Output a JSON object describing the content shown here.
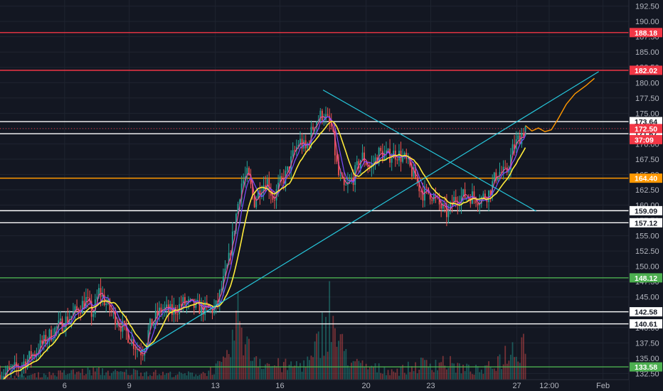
{
  "chart_data": {
    "type": "candlestick",
    "title": "",
    "xlabel": "",
    "ylabel": "",
    "ylim": [
      131.5,
      193.5
    ],
    "y_ticks": [
      132.5,
      135.0,
      137.5,
      140.0,
      142.5,
      145.0,
      147.5,
      150.0,
      152.5,
      155.0,
      157.5,
      160.0,
      162.5,
      165.0,
      167.5,
      170.0,
      172.5,
      175.0,
      177.5,
      180.0,
      182.5,
      185.0,
      187.5,
      190.0,
      192.5
    ],
    "y_tick_labels": [
      "132.50",
      "135.00",
      "137.50",
      "140.00",
      "142.50",
      "145.00",
      "147.50",
      "150.00",
      "152.50",
      "155.00",
      "157.50",
      "160.00",
      "162.50",
      "165.00",
      "167.50",
      "170.00",
      "172.50",
      "175.00",
      "177.50",
      "180.00",
      "182.50",
      "185.00",
      "187.50",
      "190.00",
      "192.50"
    ],
    "x_ticks": [
      {
        "label": "6",
        "t": 3
      },
      {
        "label": "9",
        "t": 6
      },
      {
        "label": "13",
        "t": 10
      },
      {
        "label": "16",
        "t": 13
      },
      {
        "label": "20",
        "t": 17
      },
      {
        "label": "23",
        "t": 20
      },
      {
        "label": "27",
        "t": 24
      },
      {
        "label": "12:00",
        "t": 25.5
      },
      {
        "label": "Feb",
        "t": 28
      }
    ],
    "x_range": [
      0,
      29.2
    ],
    "grid": true,
    "price_path": [
      [
        0.0,
        132.3
      ],
      [
        0.5,
        132.8
      ],
      [
        1.0,
        134.0
      ],
      [
        1.5,
        135.5
      ],
      [
        2.0,
        137.5
      ],
      [
        2.5,
        139.5
      ],
      [
        3.0,
        141.0
      ],
      [
        3.5,
        142.5
      ],
      [
        4.0,
        144.5
      ],
      [
        4.3,
        142.0
      ],
      [
        4.6,
        146.0
      ],
      [
        5.0,
        143.5
      ],
      [
        5.5,
        141.0
      ],
      [
        6.0,
        138.5
      ],
      [
        6.3,
        137.0
      ],
      [
        6.6,
        136.0
      ],
      [
        7.0,
        140.5
      ],
      [
        7.5,
        143.0
      ],
      [
        8.0,
        142.5
      ],
      [
        8.5,
        144.0
      ],
      [
        9.0,
        143.5
      ],
      [
        9.5,
        143.0
      ],
      [
        10.0,
        143.0
      ],
      [
        10.3,
        146.5
      ],
      [
        10.6,
        150.5
      ],
      [
        10.9,
        157.0
      ],
      [
        11.2,
        163.5
      ],
      [
        11.5,
        165.0
      ],
      [
        11.8,
        160.5
      ],
      [
        12.1,
        163.0
      ],
      [
        12.4,
        164.0
      ],
      [
        12.7,
        161.0
      ],
      [
        13.0,
        163.5
      ],
      [
        13.3,
        165.0
      ],
      [
        13.6,
        168.0
      ],
      [
        13.9,
        170.5
      ],
      [
        14.2,
        169.0
      ],
      [
        14.6,
        173.5
      ],
      [
        15.0,
        175.0
      ],
      [
        15.4,
        172.5
      ],
      [
        15.7,
        165.0
      ],
      [
        16.0,
        162.5
      ],
      [
        16.4,
        164.5
      ],
      [
        16.8,
        168.0
      ],
      [
        17.2,
        166.0
      ],
      [
        17.6,
        168.5
      ],
      [
        18.0,
        168.0
      ],
      [
        18.4,
        168.5
      ],
      [
        18.8,
        167.5
      ],
      [
        19.2,
        165.0
      ],
      [
        19.6,
        162.0
      ],
      [
        20.0,
        162.0
      ],
      [
        20.4,
        160.0
      ],
      [
        20.8,
        158.5
      ],
      [
        21.1,
        161.0
      ],
      [
        21.5,
        161.5
      ],
      [
        21.9,
        161.5
      ],
      [
        22.3,
        161.0
      ],
      [
        22.7,
        162.0
      ],
      [
        23.1,
        165.5
      ],
      [
        23.5,
        165.0
      ],
      [
        23.8,
        169.0
      ],
      [
        24.1,
        171.0
      ],
      [
        24.4,
        172.8
      ]
    ],
    "moving_averages": [
      {
        "color": "#e84f9c",
        "period": 3
      },
      {
        "color": "#7c4dff",
        "period": 6
      },
      {
        "color": "#ffeb3b",
        "period": 12
      }
    ],
    "volume_path": [
      [
        0.5,
        0.4
      ],
      [
        1.5,
        0.6
      ],
      [
        2.5,
        0.8
      ],
      [
        3.5,
        1.0
      ],
      [
        4.5,
        1.2
      ],
      [
        5.5,
        0.9
      ],
      [
        6.5,
        1.1
      ],
      [
        7.5,
        0.8
      ],
      [
        8.5,
        0.7
      ],
      [
        9.5,
        0.9
      ],
      [
        10.5,
        2.2
      ],
      [
        10.9,
        6.5
      ],
      [
        11.2,
        9.0
      ],
      [
        11.5,
        4.0
      ],
      [
        12.5,
        2.0
      ],
      [
        13.5,
        1.8
      ],
      [
        14.5,
        2.5
      ],
      [
        15.0,
        7.0
      ],
      [
        15.3,
        9.5
      ],
      [
        15.7,
        5.0
      ],
      [
        16.5,
        2.0
      ],
      [
        17.5,
        1.5
      ],
      [
        18.5,
        1.2
      ],
      [
        19.5,
        2.0
      ],
      [
        20.5,
        2.5
      ],
      [
        21.5,
        1.5
      ],
      [
        22.5,
        1.2
      ],
      [
        23.5,
        3.5
      ],
      [
        24.0,
        4.5
      ],
      [
        24.3,
        5.5
      ]
    ],
    "horizontal_levels": [
      {
        "price": 188.18,
        "color": "#f23645",
        "label": "188.18"
      },
      {
        "price": 182.02,
        "color": "#f23645",
        "label": "182.02"
      },
      {
        "price": 173.64,
        "color": "#ffffff",
        "label": "173.64"
      },
      {
        "price": 171.67,
        "color": "#ffffff",
        "label": "171.67"
      },
      {
        "price": 164.4,
        "color": "#ff9800",
        "label": "164.40"
      },
      {
        "price": 159.09,
        "color": "#ffffff",
        "label": "159.09"
      },
      {
        "price": 157.12,
        "color": "#ffffff",
        "label": "157.12"
      },
      {
        "price": 148.12,
        "color": "#4caf50",
        "label": "148.12"
      },
      {
        "price": 142.58,
        "color": "#ffffff",
        "label": "142.58"
      },
      {
        "price": 140.61,
        "color": "#ffffff",
        "label": "140.61"
      },
      {
        "price": 133.58,
        "color": "#4caf50",
        "label": "133.58"
      }
    ],
    "current_price_tags": [
      {
        "price": 172.5,
        "label": "172.50",
        "color": "#f23645"
      },
      {
        "price": 170.7,
        "label": "37:09",
        "color": "#f23645"
      }
    ],
    "trendlines": [
      {
        "color": "#26c6da",
        "from": [
          6.5,
          136.0
        ],
        "to": [
          27.8,
          181.8
        ]
      },
      {
        "color": "#26c6da",
        "from": [
          15.0,
          178.8
        ],
        "to": [
          24.9,
          159.0
        ]
      }
    ],
    "projection": {
      "color": "#ff9800",
      "points": [
        [
          24.4,
          173.0
        ],
        [
          24.7,
          172.1
        ],
        [
          25.0,
          172.6
        ],
        [
          25.3,
          172.0
        ],
        [
          25.6,
          172.3
        ],
        [
          25.9,
          174.0
        ],
        [
          26.3,
          176.5
        ],
        [
          26.7,
          178.2
        ],
        [
          27.2,
          179.5
        ],
        [
          27.6,
          180.7
        ]
      ]
    }
  }
}
